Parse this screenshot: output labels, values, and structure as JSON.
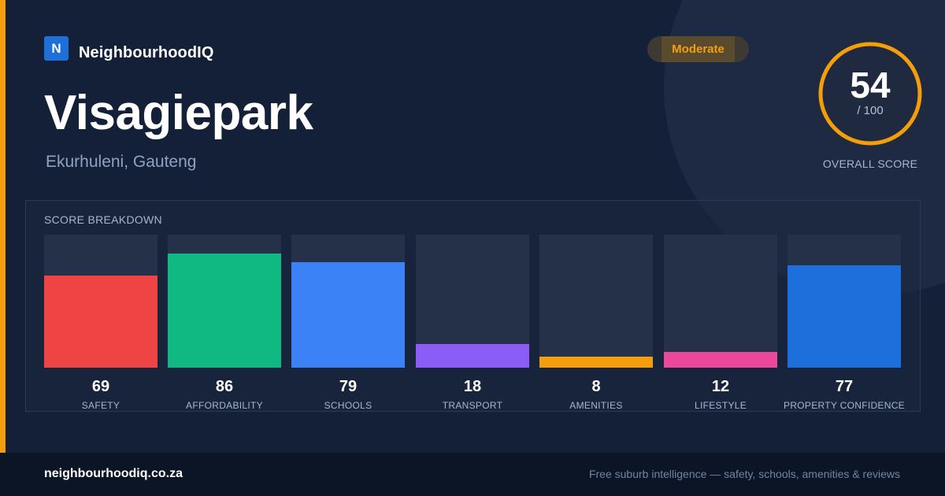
{
  "brand": {
    "logo_letter": "N",
    "name": "NeighbourhoodIQ"
  },
  "suburb": {
    "name": "Visagiepark",
    "location": "Ekurhuleni, Gauteng"
  },
  "rating": {
    "badge": "Moderate",
    "badge_color": "#f59e0b"
  },
  "overall": {
    "score": "54",
    "max": "/ 100",
    "label": "OVERALL SCORE",
    "fraction": 0.54,
    "ring_color": "#f59e0b"
  },
  "breakdown": {
    "title": "SCORE BREAKDOWN",
    "items": [
      {
        "label": "SAFETY",
        "value": "69",
        "score": 69,
        "color": "#ef4444"
      },
      {
        "label": "AFFORDABILITY",
        "value": "86",
        "score": 86,
        "color": "#10b981"
      },
      {
        "label": "SCHOOLS",
        "value": "79",
        "score": 79,
        "color": "#3b82f6"
      },
      {
        "label": "TRANSPORT",
        "value": "18",
        "score": 18,
        "color": "#8b5cf6"
      },
      {
        "label": "AMENITIES",
        "value": "8",
        "score": 8,
        "color": "#f59e0b"
      },
      {
        "label": "LIFESTYLE",
        "value": "12",
        "score": 12,
        "color": "#ec4899"
      },
      {
        "label": "PROPERTY CONFIDENCE",
        "value": "77",
        "score": 77,
        "color": "#1d6fdb"
      }
    ]
  },
  "footer": {
    "domain": "neighbourhoodiq.co.za",
    "tagline": "Free suburb intelligence — safety, schools, amenities & reviews"
  }
}
